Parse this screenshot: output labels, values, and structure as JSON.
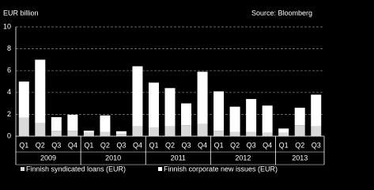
{
  "chart_data": {
    "type": "bar",
    "stacked": true,
    "y_label": "EUR billion",
    "source": "Source: Bloomberg",
    "groups": [
      {
        "label": "2009",
        "categories": [
          "Q1",
          "Q2",
          "Q3",
          "Q4"
        ]
      },
      {
        "label": "2010",
        "categories": [
          "Q1",
          "Q2",
          "Q3",
          "Q4"
        ]
      },
      {
        "label": "2011",
        "categories": [
          "Q1",
          "Q2",
          "Q3",
          "Q4"
        ]
      },
      {
        "label": "2012",
        "categories": [
          "Q1",
          "Q2",
          "Q3",
          "Q4"
        ]
      },
      {
        "label": "2013",
        "categories": [
          "Q1",
          "Q2",
          "Q3"
        ]
      }
    ],
    "series": [
      {
        "name": "Finnish syndicated loans (EUR)",
        "color": "#d9d9d9",
        "values": [
          1.7,
          1.2,
          0.5,
          0.5,
          0.3,
          0.4,
          0.2,
          0.9,
          0.8,
          0.9,
          1.0,
          1.1,
          0.5,
          0.4,
          0.4,
          0.3,
          0.3,
          1.0,
          0.9
        ]
      },
      {
        "name": "Finnish corporate new issues (EUR)",
        "color": "#ffffff",
        "values": [
          3.3,
          5.8,
          1.24,
          1.46,
          0.2,
          1.5,
          0.25,
          5.5,
          4.1,
          3.5,
          2.0,
          4.8,
          3.6,
          2.3,
          3.0,
          2.5,
          0.4,
          1.6,
          2.9
        ]
      }
    ],
    "ylim": [
      0,
      10
    ],
    "yticks": [
      0,
      2,
      4,
      6,
      8,
      10
    ],
    "grid": true
  }
}
